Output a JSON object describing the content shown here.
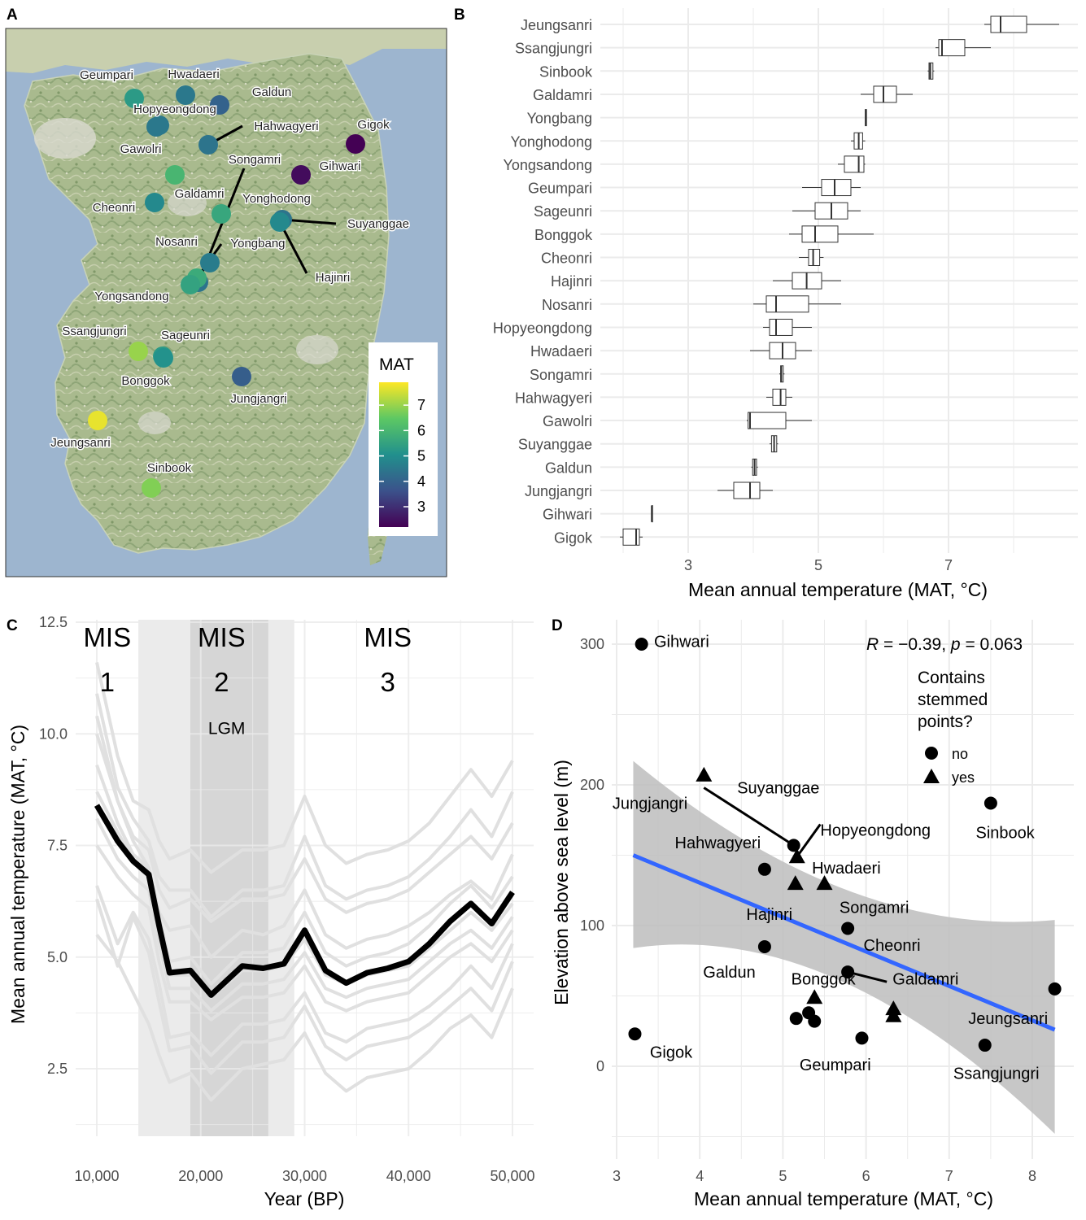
{
  "panel_letters": [
    "A",
    "B",
    "C",
    "D"
  ],
  "colors": {
    "grid": "#ebebeb",
    "map_sea": "#9db5cf",
    "map_land": "#b9c79a",
    "mean_line": "#000000",
    "light_line": "#e0e0e0",
    "fit_line": "#3366ff",
    "ci_band": "#bdbdbd",
    "lgm_light": "#ebebeb",
    "lgm_dark": "#d6d6d6",
    "viridis": [
      "#440154",
      "#3b528b",
      "#21908d",
      "#5dc863",
      "#fde725"
    ]
  },
  "chart_data": [
    {
      "panel": "A",
      "type": "map",
      "legend": {
        "title": "MAT",
        "ticks": [
          "7",
          "6",
          "5",
          "4",
          "3"
        ],
        "range": [
          2.2,
          7.9
        ],
        "palette": "viridis"
      },
      "sites": [
        {
          "name": "Geumpari",
          "mat": 5.3
        },
        {
          "name": "Hwadaeri",
          "mat": 4.5
        },
        {
          "name": "Galdun",
          "mat": 4.0
        },
        {
          "name": "Hopyeongdong",
          "mat": 4.5
        },
        {
          "name": "Hahwagyeri",
          "mat": 4.4
        },
        {
          "name": "Gigok",
          "mat": 2.2
        },
        {
          "name": "Gawolri",
          "mat": 4.5
        },
        {
          "name": "Songamri",
          "mat": 4.4
        },
        {
          "name": "Gihwari",
          "mat": 2.4
        },
        {
          "name": "Galdamri",
          "mat": 6.0
        },
        {
          "name": "Yonghodong",
          "mat": 5.6
        },
        {
          "name": "Cheonri",
          "mat": 4.9
        },
        {
          "name": "Suyanggae",
          "mat": 4.4
        },
        {
          "name": "Nosanri",
          "mat": 4.6
        },
        {
          "name": "Yongbang",
          "mat": 5.7
        },
        {
          "name": "Hajinri",
          "mat": 4.9
        },
        {
          "name": "Yongsandong",
          "mat": 5.5
        },
        {
          "name": "Ssangjungri",
          "mat": 7.0
        },
        {
          "name": "Sageunri",
          "mat": 5.3
        },
        {
          "name": "Bonggok",
          "mat": 5.1
        },
        {
          "name": "Jungjangri",
          "mat": 3.9
        },
        {
          "name": "Jeungsanri",
          "mat": 7.7
        },
        {
          "name": "Sinbook",
          "mat": 6.8
        }
      ]
    },
    {
      "panel": "B",
      "type": "boxplot",
      "xlabel": "Mean annual temperature (MAT, °C)",
      "x_ticks": [
        "3",
        "5",
        "7"
      ],
      "xlim": [
        1.7,
        8.7
      ],
      "sites": [
        {
          "name": "Jeungsanri",
          "min": 7.55,
          "q1": 7.65,
          "median": 7.8,
          "q3": 8.2,
          "max": 8.7
        },
        {
          "name": "Ssangjungri",
          "min": 6.8,
          "q1": 6.85,
          "median": 6.9,
          "q3": 7.25,
          "max": 7.65
        },
        {
          "name": "Sinbook",
          "min": 6.68,
          "q1": 6.7,
          "median": 6.72,
          "q3": 6.76,
          "max": 6.78
        },
        {
          "name": "Galdamri",
          "min": 5.65,
          "q1": 5.85,
          "median": 6.0,
          "q3": 6.2,
          "max": 6.45
        },
        {
          "name": "Yongbang",
          "min": 5.72,
          "q1": 5.72,
          "median": 5.73,
          "q3": 5.74,
          "max": 5.74
        },
        {
          "name": "Yonghodong",
          "min": 5.5,
          "q1": 5.55,
          "median": 5.62,
          "q3": 5.68,
          "max": 5.72
        },
        {
          "name": "Yongsandong",
          "min": 5.3,
          "q1": 5.4,
          "median": 5.62,
          "q3": 5.7,
          "max": 5.72
        },
        {
          "name": "Geumpari",
          "min": 4.75,
          "q1": 5.05,
          "median": 5.25,
          "q3": 5.5,
          "max": 5.65
        },
        {
          "name": "Sageunri",
          "min": 4.6,
          "q1": 4.95,
          "median": 5.2,
          "q3": 5.45,
          "max": 5.65
        },
        {
          "name": "Bonggok",
          "min": 4.55,
          "q1": 4.75,
          "median": 4.95,
          "q3": 5.3,
          "max": 5.85
        },
        {
          "name": "Cheonri",
          "min": 4.7,
          "q1": 4.85,
          "median": 4.92,
          "q3": 5.02,
          "max": 5.08
        },
        {
          "name": "Hajinri",
          "min": 4.3,
          "q1": 4.6,
          "median": 4.82,
          "q3": 5.05,
          "max": 5.35
        },
        {
          "name": "Nosanri",
          "min": 4.0,
          "q1": 4.2,
          "median": 4.35,
          "q3": 4.85,
          "max": 5.35
        },
        {
          "name": "Hopyeongdong",
          "min": 4.15,
          "q1": 4.25,
          "median": 4.35,
          "q3": 4.6,
          "max": 4.9
        },
        {
          "name": "Hwadaeri",
          "min": 3.95,
          "q1": 4.25,
          "median": 4.45,
          "q3": 4.65,
          "max": 4.9
        },
        {
          "name": "Songamri",
          "min": 4.4,
          "q1": 4.42,
          "median": 4.43,
          "q3": 4.46,
          "max": 4.48
        },
        {
          "name": "Hahwagyeri",
          "min": 4.2,
          "q1": 4.3,
          "median": 4.42,
          "q3": 4.5,
          "max": 4.6
        },
        {
          "name": "Gawolri",
          "min": 3.9,
          "q1": 3.92,
          "median": 3.95,
          "q3": 4.5,
          "max": 4.9
        },
        {
          "name": "Suyanggae",
          "min": 4.25,
          "q1": 4.28,
          "median": 4.32,
          "q3": 4.36,
          "max": 4.38
        },
        {
          "name": "Galdun",
          "min": 3.97,
          "q1": 3.99,
          "median": 4.02,
          "q3": 4.05,
          "max": 4.07
        },
        {
          "name": "Jungjangri",
          "min": 3.45,
          "q1": 3.7,
          "median": 3.95,
          "q3": 4.1,
          "max": 4.3
        },
        {
          "name": "Gihwari",
          "min": 2.44,
          "q1": 2.44,
          "median": 2.44,
          "q3": 2.44,
          "max": 2.44
        },
        {
          "name": "Gigok",
          "min": 1.95,
          "q1": 2.0,
          "median": 2.2,
          "q3": 2.25,
          "max": 2.3
        }
      ]
    },
    {
      "panel": "C",
      "type": "line",
      "xlabel": "Year (BP)",
      "ylabel": "Mean annual temperature (MAT, °C)",
      "x_ticks": [
        "10,000",
        "20,000",
        "30,000",
        "40,000",
        "50,000"
      ],
      "y_ticks": [
        "2.5",
        "5.0",
        "7.5",
        "10.0",
        "12.5"
      ],
      "xlim": [
        8000,
        52000
      ],
      "ylim": [
        1.0,
        12.5
      ],
      "shaded_regions": [
        {
          "from": 14000,
          "to": 29000,
          "tone": "light"
        },
        {
          "from": 19000,
          "to": 26500,
          "tone": "dark"
        }
      ],
      "annotations": [
        {
          "text": "MIS",
          "x": 11000,
          "y": 11.95
        },
        {
          "text": "1",
          "x": 11000,
          "y": 10.95
        },
        {
          "text": "MIS",
          "x": 22000,
          "y": 11.95
        },
        {
          "text": "2",
          "x": 22000,
          "y": 10.95
        },
        {
          "text": "LGM",
          "x": 22500,
          "y": 10.0
        },
        {
          "text": "MIS",
          "x": 38000,
          "y": 11.95
        },
        {
          "text": "3",
          "x": 38000,
          "y": 10.95
        }
      ],
      "x": [
        10000,
        12000,
        13500,
        15000,
        16000,
        17000,
        19000,
        21000,
        24000,
        26000,
        28000,
        30000,
        32000,
        34000,
        36000,
        38000,
        40000,
        42000,
        44000,
        46000,
        48000,
        50000
      ],
      "mean_series": {
        "values": [
          8.4,
          7.6,
          7.15,
          6.85,
          5.7,
          4.65,
          4.7,
          4.15,
          4.8,
          4.75,
          4.85,
          5.6,
          4.7,
          4.42,
          4.65,
          4.75,
          4.9,
          5.3,
          5.8,
          6.2,
          5.75,
          6.45
        ]
      },
      "site_series": [
        {
          "values": [
            11.6,
            9.5,
            8.5,
            8.3,
            7.6,
            7.2,
            7.4,
            6.9,
            7.4,
            7.4,
            7.5,
            8.6,
            7.5,
            7.1,
            7.3,
            7.4,
            7.6,
            8.0,
            8.6,
            9.2,
            8.6,
            9.4
          ]
        },
        {
          "values": [
            10.9,
            8.8,
            8.1,
            7.6,
            6.8,
            6.5,
            6.5,
            5.9,
            6.5,
            6.5,
            6.6,
            7.7,
            6.6,
            6.3,
            6.5,
            6.6,
            6.8,
            7.2,
            7.7,
            8.3,
            7.7,
            8.7
          ]
        },
        {
          "values": [
            10.4,
            8.5,
            7.7,
            7.4,
            6.5,
            6.1,
            6.3,
            5.8,
            6.3,
            6.3,
            6.4,
            7.2,
            6.3,
            6.0,
            6.2,
            6.3,
            6.5,
            6.9,
            7.3,
            7.7,
            7.2,
            8.0
          ]
        },
        {
          "values": [
            10.0,
            8.5,
            7.6,
            7.0,
            6.0,
            5.6,
            5.7,
            5.0,
            5.6,
            5.5,
            5.7,
            6.5,
            5.5,
            5.2,
            5.4,
            5.5,
            5.7,
            6.0,
            6.4,
            6.7,
            6.3,
            7.3
          ]
        },
        {
          "values": [
            9.3,
            8.0,
            7.3,
            7.0,
            5.9,
            4.9,
            5.0,
            4.4,
            5.1,
            5.1,
            5.2,
            6.0,
            5.1,
            4.8,
            5.0,
            5.1,
            5.3,
            5.7,
            6.2,
            6.6,
            6.1,
            6.8
          ]
        },
        {
          "values": [
            8.7,
            7.8,
            7.2,
            6.8,
            5.6,
            4.6,
            4.6,
            4.1,
            4.7,
            4.7,
            4.8,
            5.4,
            4.6,
            4.4,
            4.6,
            4.7,
            4.8,
            5.2,
            5.6,
            6.0,
            5.6,
            6.2
          ]
        },
        {
          "values": [
            8.1,
            7.2,
            6.8,
            6.5,
            5.3,
            4.3,
            4.3,
            3.8,
            4.4,
            4.4,
            4.5,
            5.1,
            4.3,
            4.1,
            4.3,
            4.4,
            4.5,
            4.9,
            5.3,
            5.6,
            5.2,
            5.9
          ]
        },
        {
          "values": [
            7.5,
            6.8,
            6.4,
            6.1,
            4.9,
            4.0,
            4.0,
            3.6,
            4.1,
            4.1,
            4.2,
            4.8,
            4.0,
            3.8,
            4.0,
            4.1,
            4.2,
            4.6,
            5.0,
            5.3,
            4.9,
            5.6
          ]
        },
        {
          "values": [
            6.6,
            5.3,
            6.0,
            5.4,
            4.4,
            3.2,
            3.3,
            2.8,
            3.5,
            3.5,
            3.6,
            4.2,
            3.3,
            3.1,
            3.4,
            3.5,
            3.6,
            3.9,
            4.3,
            4.8,
            4.3,
            5.3
          ]
        },
        {
          "values": [
            6.3,
            4.8,
            5.9,
            5.1,
            4.0,
            2.9,
            3.0,
            2.4,
            3.1,
            3.1,
            3.2,
            3.9,
            3.0,
            2.7,
            3.0,
            3.1,
            3.2,
            3.5,
            3.9,
            4.3,
            3.8,
            4.9
          ]
        },
        {
          "values": [
            5.5,
            4.9,
            4.2,
            3.5,
            2.8,
            2.2,
            2.4,
            1.8,
            2.5,
            2.6,
            2.7,
            3.3,
            2.4,
            2.0,
            2.3,
            2.4,
            2.5,
            2.9,
            3.4,
            3.7,
            3.2,
            4.3
          ]
        }
      ]
    },
    {
      "panel": "D",
      "type": "scatter",
      "xlabel": "Mean annual temperature (MAT, °C)",
      "ylabel": "Elevation above sea level (m)",
      "x_ticks": [
        "3",
        "4",
        "5",
        "6",
        "7",
        "8"
      ],
      "y_ticks": [
        "0",
        "100",
        "200",
        "300"
      ],
      "xlim": [
        2.9,
        8.4
      ],
      "ylim": [
        -65,
        318
      ],
      "stat_label": {
        "R": "R",
        "eq1": " = −0.39, ",
        "p": "p",
        "eq2": " = 0.063"
      },
      "legend": {
        "title_lines": [
          "Contains",
          "stemmed",
          "points?"
        ],
        "items": [
          {
            "shape": "circle",
            "label": "no"
          },
          {
            "shape": "triangle",
            "label": "yes"
          }
        ]
      },
      "fit": {
        "x": [
          3.2,
          8.27
        ],
        "y": [
          150,
          26
        ],
        "ci_upper": [
          217,
          104
        ],
        "ci_lower": [
          84,
          -48
        ]
      },
      "points": [
        {
          "name": "Gihwari",
          "mat": 3.3,
          "elev": 300,
          "stemmed": "no"
        },
        {
          "name": "Jungjangri",
          "mat": 4.05,
          "elev": 207,
          "stemmed": "yes"
        },
        {
          "name": "Suyanggae",
          "mat": 5.13,
          "elev": 157,
          "stemmed": "no"
        },
        {
          "name": "Hopyeongdong",
          "mat": 5.17,
          "elev": 149,
          "stemmed": "yes"
        },
        {
          "name": "Hwadaeri",
          "mat": 5.15,
          "elev": 130,
          "stemmed": "yes"
        },
        {
          "name": "Hahwagyeri",
          "mat": 4.78,
          "elev": 140,
          "stemmed": "no"
        },
        {
          "name": "Hajinri",
          "mat": 5.5,
          "elev": 130,
          "stemmed": "yes"
        },
        {
          "name": "Sinbook",
          "mat": 7.5,
          "elev": 187,
          "stemmed": "no"
        },
        {
          "name": "Songamri",
          "mat": 5.78,
          "elev": 98,
          "stemmed": "no"
        },
        {
          "name": "Galdun",
          "mat": 4.78,
          "elev": 85,
          "stemmed": "no"
        },
        {
          "name": "Cheonri",
          "mat": 5.78,
          "elev": 67,
          "stemmed": "no"
        },
        {
          "name": "Bonggok",
          "mat": 5.38,
          "elev": 49,
          "stemmed": "yes"
        },
        {
          "name": "Galdamri",
          "mat": 6.33,
          "elev": 41,
          "stemmed": "yes"
        },
        {
          "name": "Galdamri-b",
          "mat": 6.33,
          "elev": 36,
          "stemmed": "yes"
        },
        {
          "name": "Geumpari-a",
          "mat": 5.16,
          "elev": 34,
          "stemmed": "no"
        },
        {
          "name": "Geumpari-b",
          "mat": 5.31,
          "elev": 38,
          "stemmed": "no"
        },
        {
          "name": "Geumpari",
          "mat": 5.38,
          "elev": 32,
          "stemmed": "no"
        },
        {
          "name": "Geumpari-c",
          "mat": 5.95,
          "elev": 20,
          "stemmed": "no"
        },
        {
          "name": "Gigok",
          "mat": 3.22,
          "elev": 23,
          "stemmed": "no"
        },
        {
          "name": "Jeungsanri",
          "mat": 8.27,
          "elev": 55,
          "stemmed": "no"
        },
        {
          "name": "Ssangjungri",
          "mat": 7.43,
          "elev": 15,
          "stemmed": "no"
        }
      ],
      "labels": [
        {
          "text": "Gihwari",
          "x": 3.45,
          "y": 298
        },
        {
          "text": "Jungjangri",
          "x": 2.95,
          "y": 183
        },
        {
          "text": "Suyanggae",
          "x": 4.45,
          "y": 194
        },
        {
          "text": "Hopyeongdong",
          "x": 5.45,
          "y": 164
        },
        {
          "text": "Hahwagyeri",
          "x": 3.7,
          "y": 155
        },
        {
          "text": "Hwadaeri",
          "x": 5.35,
          "y": 137
        },
        {
          "text": "Sinbook",
          "x": 7.32,
          "y": 162
        },
        {
          "text": "Songamri",
          "x": 5.68,
          "y": 109
        },
        {
          "text": "Hajinri",
          "x": 4.56,
          "y": 104
        },
        {
          "text": "Cheonri",
          "x": 5.97,
          "y": 82
        },
        {
          "text": "Galdun",
          "x": 4.04,
          "y": 63
        },
        {
          "text": "Bonggok",
          "x": 5.1,
          "y": 58
        },
        {
          "text": "Galdamri",
          "x": 6.32,
          "y": 58
        },
        {
          "text": "Jeungsanri",
          "x": 7.23,
          "y": 30
        },
        {
          "text": "Gigok",
          "x": 3.4,
          "y": 6
        },
        {
          "text": "Geumpari",
          "x": 5.2,
          "y": -3
        },
        {
          "text": "Ssangjungri",
          "x": 7.05,
          "y": -9
        }
      ]
    }
  ]
}
